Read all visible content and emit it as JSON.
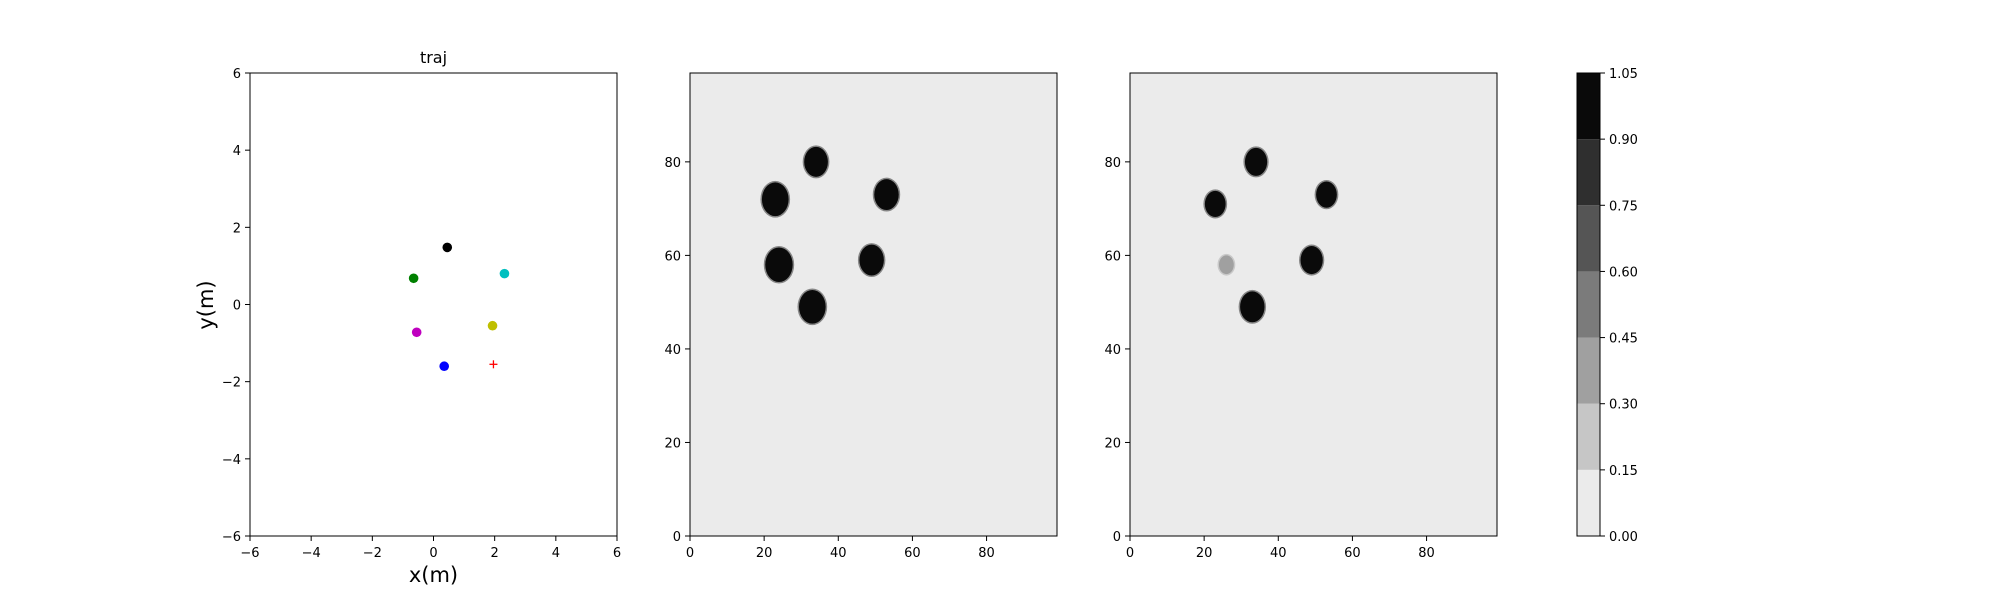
{
  "chart_data": [
    {
      "type": "scatter",
      "title": "traj",
      "xlabel": "x(m)",
      "ylabel": "y(m)",
      "xlim": [
        -6,
        6
      ],
      "ylim": [
        -6,
        6
      ],
      "xticks": [
        "−6",
        "−4",
        "−2",
        "0",
        "2",
        "4",
        "6"
      ],
      "yticks": [
        "−6",
        "−4",
        "−2",
        "0",
        "2",
        "4",
        "6"
      ],
      "grid": false,
      "series": [
        {
          "values": [
            [
              0.45,
              1.48
            ]
          ],
          "color": "#000000",
          "marker": "circle"
        },
        {
          "values": [
            [
              -0.65,
              0.68
            ]
          ],
          "color": "#008000",
          "marker": "circle"
        },
        {
          "values": [
            [
              2.32,
              0.8
            ]
          ],
          "color": "#00bfbf",
          "marker": "circle"
        },
        {
          "values": [
            [
              -0.55,
              -0.72
            ]
          ],
          "color": "#bf00bf",
          "marker": "circle"
        },
        {
          "values": [
            [
              1.93,
              -0.55
            ]
          ],
          "color": "#bfbf00",
          "marker": "circle"
        },
        {
          "values": [
            [
              0.35,
              -1.6
            ]
          ],
          "color": "#0000ff",
          "marker": "circle"
        },
        {
          "values": [
            [
              1.96,
              -1.55
            ]
          ],
          "color": "#ff0000",
          "marker": "plus"
        }
      ]
    },
    {
      "type": "heatmap",
      "xlim": [
        0,
        99
      ],
      "ylim": [
        0,
        99
      ],
      "xticks": [
        "0",
        "20",
        "40",
        "60",
        "80"
      ],
      "yticks": [
        "0",
        "20",
        "40",
        "60",
        "80"
      ],
      "background_value": 0.0,
      "blobs": [
        {
          "x": 34,
          "y": 80,
          "r": 3.2,
          "value": 1.0
        },
        {
          "x": 23,
          "y": 72,
          "r": 3.6,
          "value": 1.0
        },
        {
          "x": 53,
          "y": 73,
          "r": 3.3,
          "value": 1.0
        },
        {
          "x": 24,
          "y": 58,
          "r": 3.7,
          "value": 1.0
        },
        {
          "x": 49,
          "y": 59,
          "r": 3.3,
          "value": 1.0
        },
        {
          "x": 33,
          "y": 49,
          "r": 3.6,
          "value": 1.0
        }
      ]
    },
    {
      "type": "heatmap",
      "xlim": [
        0,
        99
      ],
      "ylim": [
        0,
        99
      ],
      "xticks": [
        "0",
        "20",
        "40",
        "60",
        "80"
      ],
      "yticks": [
        "0",
        "20",
        "40",
        "60",
        "80"
      ],
      "background_value": 0.0,
      "blobs": [
        {
          "x": 34,
          "y": 80,
          "r": 3.0,
          "value": 1.0
        },
        {
          "x": 23,
          "y": 71,
          "r": 2.8,
          "value": 1.0
        },
        {
          "x": 53,
          "y": 73,
          "r": 2.8,
          "value": 1.0
        },
        {
          "x": 49,
          "y": 59,
          "r": 3.0,
          "value": 1.0
        },
        {
          "x": 33,
          "y": 49,
          "r": 3.3,
          "value": 1.0
        },
        {
          "x": 26,
          "y": 58,
          "r": 2.0,
          "value": 0.35
        }
      ]
    }
  ],
  "colorbar": {
    "levels": [
      0.0,
      0.15,
      0.3,
      0.45,
      0.6,
      0.75,
      0.9,
      1.05
    ],
    "tick_labels": [
      "0.00",
      "0.15",
      "0.30",
      "0.45",
      "0.60",
      "0.75",
      "0.90",
      "1.05"
    ],
    "colors": [
      "#ebebeb",
      "#c6c6c6",
      "#a0a0a0",
      "#7b7b7b",
      "#555555",
      "#2f2f2f",
      "#0a0a0a"
    ]
  }
}
